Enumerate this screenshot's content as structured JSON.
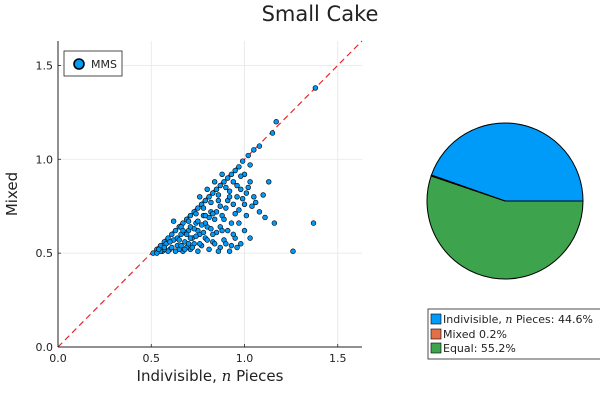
{
  "title": "Small Cake",
  "chart_data": [
    {
      "type": "scatter",
      "title": "",
      "xlabel_prefix": "Indivisible, ",
      "xlabel_var": "n",
      "xlabel_suffix": " Pieces",
      "ylabel": "Mixed",
      "xlim": [
        0,
        1.63
      ],
      "ylim": [
        0,
        1.63
      ],
      "xticks": [
        "0.0",
        "0.5",
        "1.0",
        "1.5"
      ],
      "yticks": [
        "0.0",
        "0.5",
        "1.0",
        "1.5"
      ],
      "grid": true,
      "legend_position": "top-left",
      "series": [
        {
          "name": "MMS",
          "color": "#009af9",
          "points": [
            [
              1.38,
              1.38
            ],
            [
              1.17,
              1.2
            ],
            [
              1.15,
              1.14
            ],
            [
              1.08,
              1.07
            ],
            [
              1.05,
              1.05
            ],
            [
              1.02,
              1.02
            ],
            [
              0.99,
              0.99
            ],
            [
              0.97,
              0.96
            ],
            [
              0.95,
              0.94
            ],
            [
              0.93,
              0.92
            ],
            [
              0.91,
              0.9
            ],
            [
              0.89,
              0.88
            ],
            [
              0.87,
              0.86
            ],
            [
              0.85,
              0.84
            ],
            [
              0.83,
              0.82
            ],
            [
              0.81,
              0.8
            ],
            [
              0.79,
              0.78
            ],
            [
              0.77,
              0.76
            ],
            [
              0.75,
              0.74
            ],
            [
              0.73,
              0.72
            ],
            [
              0.71,
              0.7
            ],
            [
              0.69,
              0.68
            ],
            [
              0.67,
              0.66
            ],
            [
              0.65,
              0.64
            ],
            [
              0.63,
              0.62
            ],
            [
              0.61,
              0.6
            ],
            [
              0.59,
              0.58
            ],
            [
              0.57,
              0.56
            ],
            [
              0.55,
              0.54
            ],
            [
              0.53,
              0.52
            ],
            [
              0.51,
              0.5
            ],
            [
              1.02,
              0.85
            ],
            [
              1.03,
              0.88
            ],
            [
              1.05,
              0.8
            ],
            [
              1.0,
              0.92
            ],
            [
              0.98,
              0.84
            ],
            [
              0.96,
              0.8
            ],
            [
              1.0,
              0.76
            ],
            [
              0.94,
              0.76
            ],
            [
              0.92,
              0.83
            ],
            [
              0.9,
              0.74
            ],
            [
              0.88,
              0.7
            ],
            [
              0.86,
              0.78
            ],
            [
              0.84,
              0.68
            ],
            [
              0.82,
              0.72
            ],
            [
              0.8,
              0.64
            ],
            [
              0.78,
              0.7
            ],
            [
              0.76,
              0.6
            ],
            [
              0.74,
              0.66
            ],
            [
              0.72,
              0.58
            ],
            [
              0.7,
              0.62
            ],
            [
              0.68,
              0.56
            ],
            [
              0.66,
              0.6
            ],
            [
              0.64,
              0.54
            ],
            [
              0.62,
              0.57
            ],
            [
              0.6,
              0.52
            ],
            [
              0.58,
              0.55
            ],
            [
              0.56,
              0.51
            ],
            [
              1.13,
              0.88
            ],
            [
              1.1,
              0.81
            ],
            [
              1.08,
              0.72
            ],
            [
              1.11,
              0.69
            ],
            [
              1.16,
              0.66
            ],
            [
              1.26,
              0.51
            ],
            [
              1.37,
              0.66
            ],
            [
              1.01,
              0.7
            ],
            [
              0.97,
              0.66
            ],
            [
              0.95,
              0.58
            ],
            [
              0.93,
              0.54
            ],
            [
              0.91,
              0.62
            ],
            [
              0.89,
              0.57
            ],
            [
              0.87,
              0.53
            ],
            [
              0.85,
              0.61
            ],
            [
              0.83,
              0.56
            ],
            [
              0.81,
              0.52
            ],
            [
              0.79,
              0.58
            ],
            [
              0.77,
              0.54
            ],
            [
              0.75,
              0.51
            ],
            [
              0.73,
              0.55
            ],
            [
              0.71,
              0.52
            ],
            [
              0.69,
              0.53
            ],
            [
              0.67,
              0.51
            ],
            [
              0.65,
              0.52
            ],
            [
              0.63,
              0.51
            ],
            [
              0.61,
              0.53
            ],
            [
              0.59,
              0.51
            ],
            [
              0.57,
              0.52
            ],
            [
              0.55,
              0.51
            ],
            [
              0.53,
              0.5
            ],
            [
              0.62,
              0.67
            ],
            [
              0.66,
              0.64
            ],
            [
              0.7,
              0.67
            ],
            [
              0.74,
              0.71
            ],
            [
              0.78,
              0.74
            ],
            [
              0.82,
              0.77
            ],
            [
              0.86,
              0.81
            ],
            [
              0.9,
              0.85
            ],
            [
              0.94,
              0.88
            ],
            [
              0.98,
              0.91
            ],
            [
              1.03,
              0.97
            ],
            [
              0.88,
              0.92
            ],
            [
              0.84,
              0.88
            ],
            [
              0.8,
              0.84
            ],
            [
              0.76,
              0.8
            ],
            [
              1.0,
              0.62
            ],
            [
              0.98,
              0.55
            ],
            [
              1.03,
              0.58
            ],
            [
              0.96,
              0.53
            ],
            [
              0.92,
              0.51
            ],
            [
              0.87,
              0.64
            ],
            [
              0.83,
              0.6
            ],
            [
              0.79,
              0.66
            ],
            [
              0.75,
              0.62
            ],
            [
              0.71,
              0.58
            ],
            [
              0.68,
              0.61
            ],
            [
              0.64,
              0.58
            ],
            [
              0.6,
              0.56
            ],
            [
              0.57,
              0.53
            ],
            [
              0.54,
              0.52
            ],
            [
              0.91,
              0.78
            ],
            [
              0.95,
              0.71
            ],
            [
              0.93,
              0.66
            ],
            [
              0.89,
              0.68
            ],
            [
              0.85,
              0.72
            ],
            [
              0.81,
              0.69
            ],
            [
              0.77,
              0.65
            ],
            [
              0.73,
              0.63
            ],
            [
              0.69,
              0.6
            ],
            [
              0.65,
              0.57
            ],
            [
              1.04,
              0.75
            ],
            [
              1.06,
              0.77
            ],
            [
              0.99,
              0.79
            ],
            [
              0.97,
              0.73
            ],
            [
              0.84,
              0.55
            ],
            [
              0.8,
              0.57
            ],
            [
              0.76,
              0.55
            ],
            [
              0.72,
              0.53
            ],
            [
              0.68,
              0.52
            ],
            [
              0.86,
              0.51
            ],
            [
              0.9,
              0.55
            ],
            [
              0.94,
              0.6
            ],
            [
              0.88,
              0.62
            ],
            [
              0.82,
              0.63
            ],
            [
              0.78,
              0.61
            ],
            [
              0.74,
              0.59
            ],
            [
              0.7,
              0.55
            ],
            [
              0.66,
              0.54
            ],
            [
              1.01,
              0.82
            ],
            [
              0.96,
              0.86
            ],
            [
              0.92,
              0.8
            ],
            [
              0.87,
              0.75
            ],
            [
              0.83,
              0.71
            ],
            [
              0.79,
              0.7
            ],
            [
              0.75,
              0.67
            ],
            [
              0.71,
              0.64
            ],
            [
              0.67,
              0.62
            ]
          ]
        }
      ],
      "reference_line": {
        "type": "y = x",
        "color": "#e8272c",
        "style": "dashed"
      }
    },
    {
      "type": "pie",
      "slices": [
        {
          "label_prefix": "Indivisible, ",
          "label_var": "n",
          "label_suffix": " Pieces: 44.6%",
          "value": 44.6,
          "color": "#009af9"
        },
        {
          "label_prefix": "Mixed 0.2%",
          "label_var": "",
          "label_suffix": "",
          "value": 0.2,
          "color": "#e26f46"
        },
        {
          "label_prefix": "Equal: 55.2%",
          "label_var": "",
          "label_suffix": "",
          "value": 55.2,
          "color": "#3da44d"
        }
      ],
      "legend_position": "bottom-right"
    }
  ]
}
